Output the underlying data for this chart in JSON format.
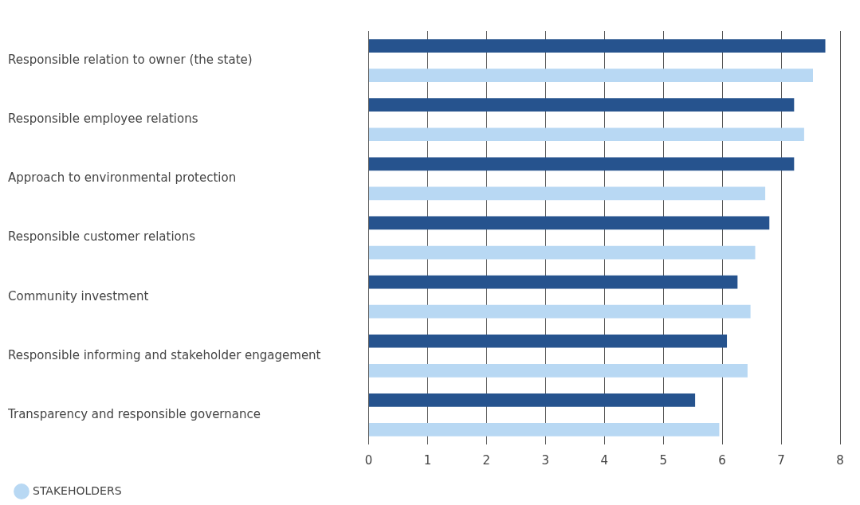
{
  "chart_data": {
    "type": "bar",
    "orientation": "horizontal",
    "categories": [
      "Responsible relation to owner (the state)",
      "Responsible employee relations",
      "Approach to environmental protection",
      "Responsible customer relations",
      "Community investment",
      "Responsible informing and stakeholder engagement",
      "Transparency and responsible governance"
    ],
    "series": [
      {
        "color": "#26538e",
        "values": [
          7.75,
          7.22,
          7.22,
          6.8,
          6.26,
          6.08,
          5.54
        ]
      },
      {
        "name": "STAKEHOLDERS",
        "color": "#b8d8f3",
        "values": [
          7.54,
          7.39,
          6.73,
          6.56,
          6.48,
          6.43,
          5.95
        ]
      }
    ],
    "xlim": [
      0,
      8
    ],
    "xticks": [
      0,
      1,
      2,
      3,
      4,
      5,
      6,
      7,
      8
    ],
    "grid": "x",
    "legend": "bottom left"
  }
}
